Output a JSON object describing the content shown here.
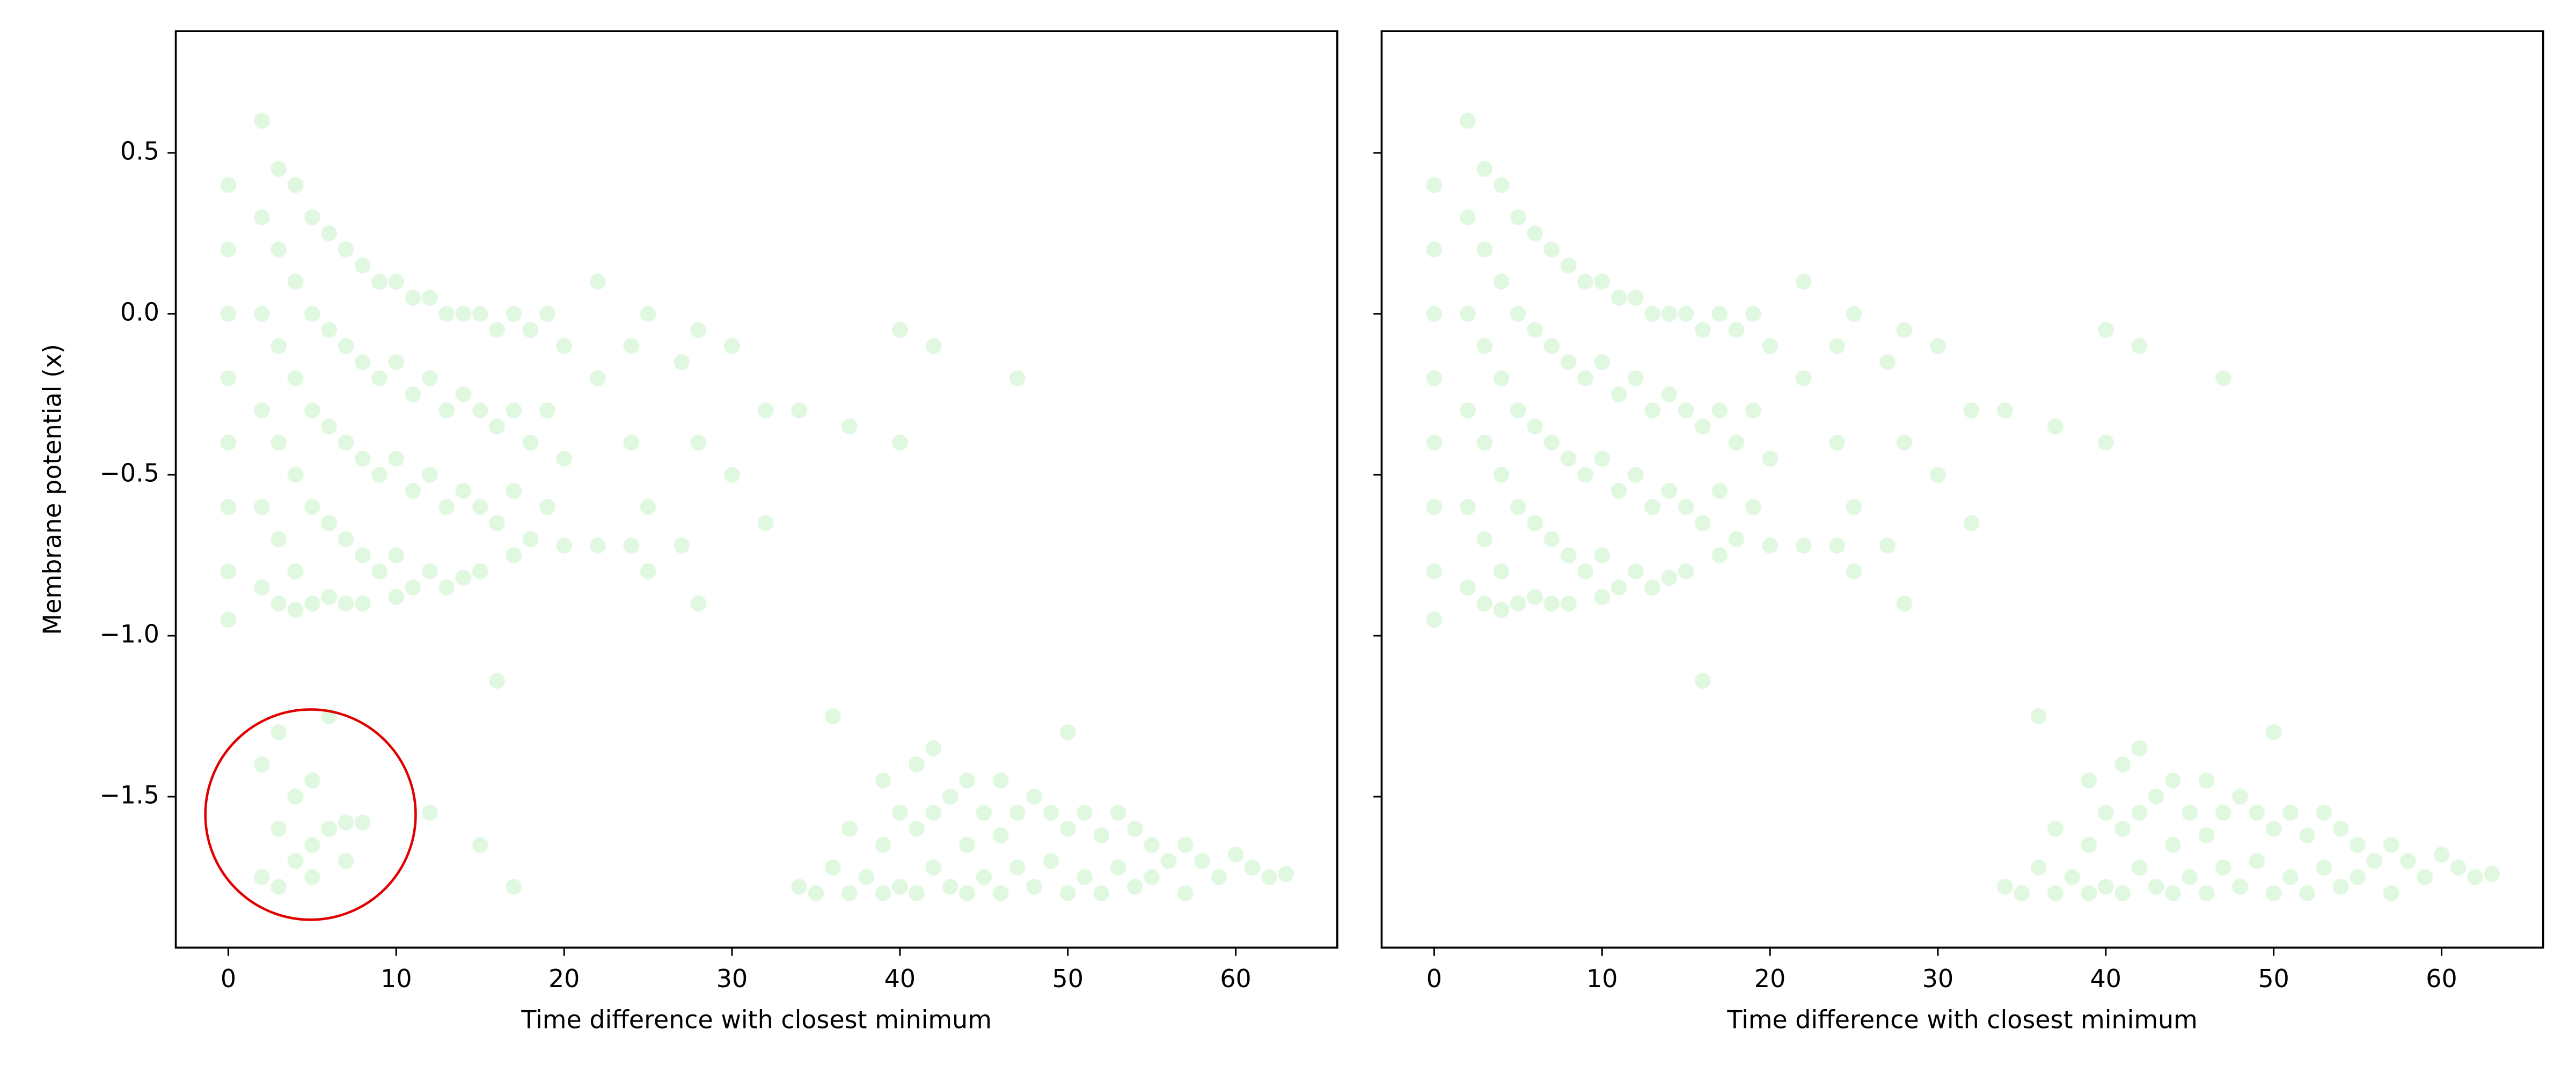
{
  "chart_data": [
    {
      "type": "scatter",
      "xlabel": "Time difference with closest minimum",
      "ylabel": "Membrane potential (x)",
      "color": "#32cd32",
      "xlim": [
        -3.13,
        66.05
      ],
      "ylim": [
        -1.969,
        0.878
      ],
      "xticks": [
        0,
        10,
        20,
        30,
        40,
        50,
        60
      ],
      "yticks": [
        {
          "value": -1.5,
          "label": "−1.5"
        },
        {
          "value": -1.0,
          "label": "−1.0"
        },
        {
          "value": -0.5,
          "label": "−0.5"
        },
        {
          "value": 0.0,
          "label": "0.0"
        },
        0.5
      ],
      "show_ytick_labels": true,
      "x": [
        0,
        0,
        0,
        0,
        0,
        0,
        0,
        0,
        2,
        2,
        2,
        2,
        2,
        2,
        3,
        3,
        3,
        3,
        3,
        3,
        4,
        4,
        4,
        4,
        4,
        4,
        5,
        5,
        5,
        5,
        5,
        6,
        6,
        6,
        6,
        6,
        7,
        7,
        7,
        7,
        7,
        8,
        8,
        8,
        8,
        8,
        9,
        9,
        9,
        9,
        10,
        10,
        10,
        10,
        10,
        11,
        11,
        11,
        11,
        12,
        12,
        12,
        12,
        13,
        13,
        13,
        13,
        14,
        14,
        14,
        14,
        15,
        15,
        15,
        15,
        16,
        16,
        16,
        17,
        17,
        17,
        17,
        18,
        18,
        18,
        19,
        19,
        19,
        20,
        20,
        20,
        22,
        22,
        22,
        24,
        24,
        24,
        25,
        25,
        25,
        27,
        27,
        28,
        28,
        28,
        30,
        30,
        32,
        32,
        34,
        37,
        40,
        40,
        42,
        47,
        16,
        2,
        2,
        3,
        3,
        3,
        4,
        4,
        5,
        5,
        5,
        6,
        6,
        7,
        7,
        8,
        12,
        15,
        17,
        34,
        35,
        36,
        36,
        37,
        37,
        38,
        39,
        39,
        39,
        40,
        40,
        41,
        41,
        41,
        42,
        42,
        42,
        43,
        43,
        44,
        44,
        44,
        45,
        45,
        46,
        46,
        46,
        47,
        47,
        48,
        48,
        49,
        49,
        50,
        50,
        50,
        51,
        51,
        52,
        52,
        53,
        53,
        54,
        54,
        55,
        55,
        56,
        57,
        57,
        58,
        59,
        60,
        61,
        62,
        63
      ],
      "values": [
        0.4,
        0.2,
        0,
        -0.2,
        -0.4,
        -0.6,
        -0.8,
        -0.95,
        0.6,
        0.3,
        0,
        -0.3,
        -0.6,
        -0.85,
        0.45,
        0.2,
        -0.1,
        -0.4,
        -0.7,
        -0.9,
        0.4,
        0.1,
        -0.2,
        -0.5,
        -0.8,
        -0.92,
        0.3,
        0,
        -0.3,
        -0.6,
        -0.9,
        0.25,
        -0.05,
        -0.35,
        -0.65,
        -0.88,
        0.2,
        -0.1,
        -0.4,
        -0.7,
        -0.9,
        0.15,
        -0.15,
        -0.45,
        -0.75,
        -0.9,
        0.1,
        -0.2,
        -0.5,
        -0.8,
        0.1,
        -0.15,
        -0.45,
        -0.75,
        -0.88,
        0.05,
        -0.25,
        -0.55,
        -0.85,
        0.05,
        -0.2,
        -0.5,
        -0.8,
        0,
        -0.3,
        -0.6,
        -0.85,
        0,
        -0.25,
        -0.55,
        -0.82,
        0,
        -0.3,
        -0.6,
        -0.8,
        -0.05,
        -0.35,
        -0.65,
        0,
        -0.3,
        -0.55,
        -0.75,
        -0.05,
        -0.4,
        -0.7,
        0,
        -0.3,
        -0.6,
        -0.1,
        -0.45,
        -0.72,
        0.1,
        -0.2,
        -0.72,
        -0.1,
        -0.4,
        -0.72,
        0,
        -0.6,
        -0.8,
        -0.15,
        -0.72,
        -0.05,
        -0.4,
        -0.9,
        -0.1,
        -0.5,
        -0.3,
        -0.65,
        -0.3,
        -0.35,
        -0.05,
        -0.4,
        -0.1,
        -0.2,
        -1.14,
        -1.4,
        -1.75,
        -1.3,
        -1.6,
        -1.78,
        -1.5,
        -1.7,
        -1.45,
        -1.65,
        -1.75,
        -1.25,
        -1.6,
        -1.58,
        -1.7,
        -1.58,
        -1.55,
        -1.65,
        -1.78,
        -1.78,
        -1.8,
        -1.25,
        -1.72,
        -1.8,
        -1.6,
        -1.75,
        -1.45,
        -1.65,
        -1.8,
        -1.55,
        -1.78,
        -1.4,
        -1.6,
        -1.8,
        -1.35,
        -1.55,
        -1.72,
        -1.5,
        -1.78,
        -1.45,
        -1.65,
        -1.8,
        -1.55,
        -1.75,
        -1.45,
        -1.62,
        -1.8,
        -1.55,
        -1.72,
        -1.5,
        -1.78,
        -1.55,
        -1.7,
        -1.3,
        -1.6,
        -1.8,
        -1.55,
        -1.75,
        -1.62,
        -1.8,
        -1.55,
        -1.72,
        -1.6,
        -1.78,
        -1.65,
        -1.75,
        -1.7,
        -1.65,
        -1.8,
        -1.7,
        -1.75,
        -1.68,
        -1.72,
        -1.75,
        -1.74
      ]
    },
    {
      "type": "scatter",
      "xlabel": "Time difference with closest minimum",
      "color": "#32cd32",
      "xlim": [
        -3.13,
        66.05
      ],
      "ylim": [
        -1.969,
        0.878
      ],
      "xticks": [
        0,
        10,
        20,
        30,
        40,
        50,
        60
      ],
      "yticks": [
        -1.5,
        -1.0,
        -0.5,
        0.0,
        0.5
      ],
      "show_ytick_labels": false,
      "x": [
        0,
        0,
        0,
        0,
        0,
        0,
        0,
        0,
        2,
        2,
        2,
        2,
        2,
        2,
        3,
        3,
        3,
        3,
        3,
        3,
        4,
        4,
        4,
        4,
        4,
        4,
        5,
        5,
        5,
        5,
        5,
        6,
        6,
        6,
        6,
        6,
        7,
        7,
        7,
        7,
        7,
        8,
        8,
        8,
        8,
        8,
        9,
        9,
        9,
        9,
        10,
        10,
        10,
        10,
        10,
        11,
        11,
        11,
        11,
        12,
        12,
        12,
        12,
        13,
        13,
        13,
        13,
        14,
        14,
        14,
        14,
        15,
        15,
        15,
        15,
        16,
        16,
        16,
        17,
        17,
        17,
        17,
        18,
        18,
        18,
        19,
        19,
        19,
        20,
        20,
        20,
        22,
        22,
        22,
        24,
        24,
        24,
        25,
        25,
        25,
        27,
        27,
        28,
        28,
        28,
        30,
        30,
        32,
        32,
        34,
        37,
        40,
        40,
        42,
        47,
        16,
        34,
        35,
        36,
        36,
        37,
        37,
        38,
        39,
        39,
        39,
        40,
        40,
        41,
        41,
        41,
        42,
        42,
        42,
        43,
        43,
        44,
        44,
        44,
        45,
        45,
        46,
        46,
        46,
        47,
        47,
        48,
        48,
        49,
        49,
        50,
        50,
        50,
        51,
        51,
        52,
        52,
        53,
        53,
        54,
        54,
        55,
        55,
        56,
        57,
        57,
        58,
        59,
        60,
        61,
        62,
        63
      ],
      "values": [
        0.4,
        0.2,
        0,
        -0.2,
        -0.4,
        -0.6,
        -0.8,
        -0.95,
        0.6,
        0.3,
        0,
        -0.3,
        -0.6,
        -0.85,
        0.45,
        0.2,
        -0.1,
        -0.4,
        -0.7,
        -0.9,
        0.4,
        0.1,
        -0.2,
        -0.5,
        -0.8,
        -0.92,
        0.3,
        0,
        -0.3,
        -0.6,
        -0.9,
        0.25,
        -0.05,
        -0.35,
        -0.65,
        -0.88,
        0.2,
        -0.1,
        -0.4,
        -0.7,
        -0.9,
        0.15,
        -0.15,
        -0.45,
        -0.75,
        -0.9,
        0.1,
        -0.2,
        -0.5,
        -0.8,
        0.1,
        -0.15,
        -0.45,
        -0.75,
        -0.88,
        0.05,
        -0.25,
        -0.55,
        -0.85,
        0.05,
        -0.2,
        -0.5,
        -0.8,
        0,
        -0.3,
        -0.6,
        -0.85,
        0,
        -0.25,
        -0.55,
        -0.82,
        0,
        -0.3,
        -0.6,
        -0.8,
        -0.05,
        -0.35,
        -0.65,
        0,
        -0.3,
        -0.55,
        -0.75,
        -0.05,
        -0.4,
        -0.7,
        0,
        -0.3,
        -0.6,
        -0.1,
        -0.45,
        -0.72,
        0.1,
        -0.2,
        -0.72,
        -0.1,
        -0.4,
        -0.72,
        0,
        -0.6,
        -0.8,
        -0.15,
        -0.72,
        -0.05,
        -0.4,
        -0.9,
        -0.1,
        -0.5,
        -0.3,
        -0.65,
        -0.3,
        -0.35,
        -0.05,
        -0.4,
        -0.1,
        -0.2,
        -1.14,
        -1.78,
        -1.8,
        -1.25,
        -1.72,
        -1.8,
        -1.6,
        -1.75,
        -1.45,
        -1.65,
        -1.8,
        -1.55,
        -1.78,
        -1.4,
        -1.6,
        -1.8,
        -1.35,
        -1.55,
        -1.72,
        -1.5,
        -1.78,
        -1.45,
        -1.65,
        -1.8,
        -1.55,
        -1.75,
        -1.45,
        -1.62,
        -1.8,
        -1.55,
        -1.72,
        -1.5,
        -1.78,
        -1.55,
        -1.7,
        -1.3,
        -1.6,
        -1.8,
        -1.55,
        -1.75,
        -1.62,
        -1.8,
        -1.55,
        -1.72,
        -1.6,
        -1.78,
        -1.65,
        -1.75,
        -1.7,
        -1.65,
        -1.8,
        -1.7,
        -1.75,
        -1.68,
        -1.72,
        -1.75,
        -1.74
      ]
    }
  ]
}
